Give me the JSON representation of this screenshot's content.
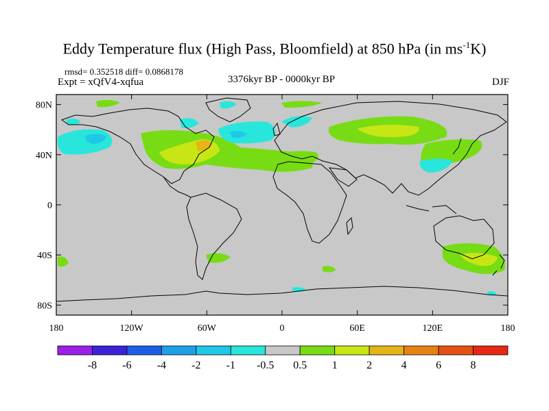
{
  "title": {
    "main": "Eddy Temperature flux (High Pass, Bloomfield) at 850 hPa (in ms",
    "sup": "-1",
    "end": "K)"
  },
  "stats": "rmsd= 0.352518 diff= 0.0868178",
  "experiment": "Expt = xQfV4-xqfua",
  "period": "3376kyr BP - 0000kyr BP",
  "season": "DJF",
  "axes": {
    "lat_labels": [
      "80N",
      "40N",
      "0",
      "40S",
      "80S"
    ],
    "lon_labels": [
      "180",
      "120W",
      "60W",
      "0",
      "60E",
      "120E",
      "180"
    ],
    "lat_values": [
      80,
      40,
      0,
      -40,
      -80
    ],
    "lon_values": [
      -180,
      -120,
      -60,
      0,
      60,
      120,
      180
    ]
  },
  "colorbar": {
    "labels": [
      "-8",
      "-6",
      "-4",
      "-2",
      "-1",
      "-0.5",
      "0.5",
      "1",
      "2",
      "4",
      "6",
      "8"
    ],
    "colors": [
      "#9b1fe6",
      "#3a23d8",
      "#1e5ee6",
      "#1ea0e6",
      "#1ec8e6",
      "#28e6dc",
      "#c8c8c8",
      "#78dc14",
      "#c8e614",
      "#e6b414",
      "#e68214",
      "#e65014",
      "#e62814"
    ]
  },
  "colors": {
    "land_ocean_gray": "#c8c8c8",
    "coast": "#000000",
    "frame": "#000000"
  }
}
